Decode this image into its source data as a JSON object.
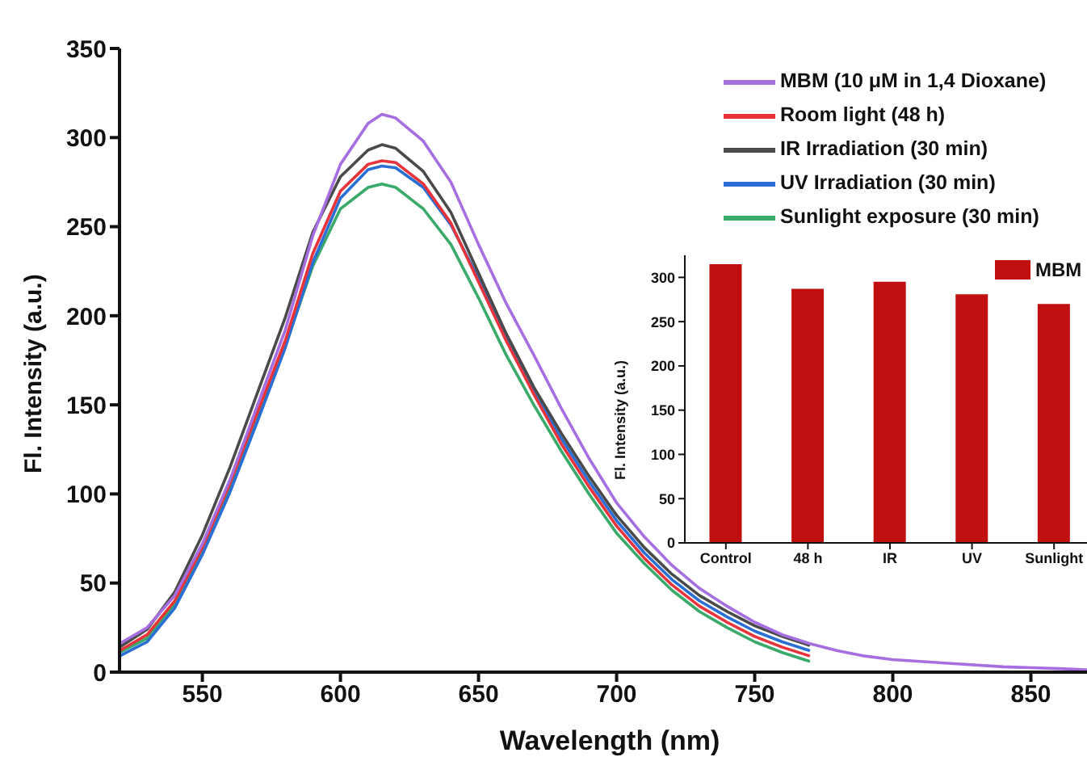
{
  "chart_data": [
    {
      "type": "line",
      "xlabel": "Wavelength (nm)",
      "ylabel": "Fl. Intensity (a.u.)",
      "x": [
        520,
        530,
        540,
        550,
        560,
        570,
        580,
        590,
        600,
        610,
        615,
        620,
        630,
        640,
        650,
        660,
        670,
        680,
        690,
        700,
        710,
        720,
        730,
        740,
        750,
        760,
        770,
        780,
        790,
        800,
        820,
        840,
        860,
        875
      ],
      "xlim": [
        520,
        875
      ],
      "xticks": [
        550,
        600,
        650,
        700,
        750,
        800,
        850
      ],
      "ylim": [
        0,
        350
      ],
      "yticks": [
        0,
        50,
        100,
        150,
        200,
        250,
        300,
        350
      ],
      "grid": false,
      "legend": "top right",
      "marker": "none",
      "series": [
        {
          "name": "MBM (10 μM in 1,4 Dioxane)",
          "color": "#a66ee0",
          "values": [
            16,
            25,
            43,
            72,
            108,
            150,
            192,
            245,
            285,
            308,
            313,
            311,
            298,
            275,
            240,
            207,
            178,
            148,
            120,
            95,
            76,
            60,
            47,
            37,
            28,
            21,
            16,
            12,
            9,
            7,
            5,
            3,
            2,
            1
          ]
        },
        {
          "name": "Room light (48 h)",
          "color": "#e8333a",
          "values": [
            12,
            21,
            40,
            70,
            106,
            146,
            186,
            235,
            270,
            285,
            287,
            286,
            274,
            252,
            219,
            186,
            156,
            128,
            104,
            82,
            64,
            49,
            37,
            28,
            20,
            14,
            9,
            null,
            null,
            null,
            null,
            null,
            null,
            null
          ]
        },
        {
          "name": "IR Irradiation (30 min)",
          "color": "#4a4a4a",
          "values": [
            14,
            24,
            45,
            77,
            115,
            157,
            199,
            247,
            278,
            293,
            296,
            294,
            281,
            258,
            224,
            190,
            160,
            134,
            110,
            88,
            70,
            55,
            43,
            34,
            26,
            20,
            15,
            null,
            null,
            null,
            null,
            null,
            null,
            null
          ]
        },
        {
          "name": "UV Irradiation (30 min)",
          "color": "#2a6fd6",
          "values": [
            9,
            17,
            36,
            66,
            101,
            141,
            182,
            230,
            266,
            282,
            284,
            283,
            272,
            251,
            221,
            188,
            158,
            131,
            107,
            85,
            67,
            52,
            40,
            31,
            23,
            17,
            12,
            null,
            null,
            null,
            null,
            null,
            null,
            null
          ]
        },
        {
          "name": "Sunlight exposure (30 min)",
          "color": "#3aaa6a",
          "values": [
            11,
            19,
            38,
            68,
            103,
            143,
            183,
            228,
            260,
            272,
            274,
            272,
            260,
            240,
            210,
            178,
            150,
            124,
            100,
            78,
            61,
            46,
            34,
            25,
            17,
            11,
            6,
            null,
            null,
            null,
            null,
            null,
            null,
            null
          ]
        }
      ]
    },
    {
      "type": "bar",
      "ylabel": "Fl. Intensity (a.u.)",
      "categories": [
        "Control",
        "48 h",
        "IR",
        "UV",
        "Sunlight"
      ],
      "ylim": [
        0,
        325
      ],
      "yticks": [
        0,
        50,
        100,
        150,
        200,
        250,
        300
      ],
      "grid": false,
      "legend": "top right",
      "series": [
        {
          "name": "MBM",
          "color": "#c00f0f",
          "values": [
            315,
            287,
            295,
            281,
            270
          ]
        }
      ]
    }
  ]
}
